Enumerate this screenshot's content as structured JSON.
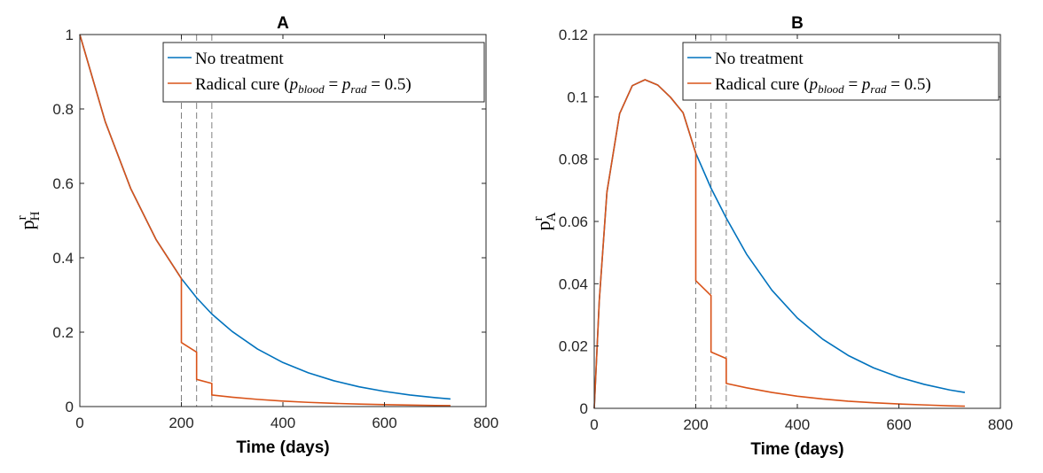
{
  "chart_data": [
    {
      "type": "line",
      "title": "A",
      "xlabel": "Time (days)",
      "ylabel": "p",
      "ylabel_sup": "r",
      "ylabel_sub": "H",
      "xlim": [
        0,
        800
      ],
      "ylim": [
        0,
        1
      ],
      "xticks": [
        "0",
        "200",
        "400",
        "600",
        "800"
      ],
      "yticks": [
        "0",
        "0.2",
        "0.4",
        "0.6",
        "0.8",
        "1"
      ],
      "vlines": [
        200,
        230,
        260
      ],
      "legend": {
        "position": "top-right",
        "entries": [
          "No treatment",
          "Radical cure (p_blood = p_rad = 0.5)"
        ]
      },
      "series": [
        {
          "name": "No treatment",
          "color": "#0072BD",
          "points": [
            [
              0,
              1
            ],
            [
              50,
              0.7659
            ],
            [
              100,
              0.5867
            ],
            [
              150,
              0.4493
            ],
            [
              200,
              0.3442
            ],
            [
              230,
              0.2926
            ],
            [
              260,
              0.2488
            ],
            [
              300,
              0.2019
            ],
            [
              350,
              0.1546
            ],
            [
              400,
              0.1184
            ],
            [
              450,
              0.0907
            ],
            [
              500,
              0.0695
            ],
            [
              550,
              0.0532
            ],
            [
              600,
              0.0408
            ],
            [
              650,
              0.0312
            ],
            [
              700,
              0.0239
            ],
            [
              730,
              0.0203
            ]
          ]
        },
        {
          "name": "Radical cure (p_blood = p_rad = 0.5)",
          "color": "#D95319",
          "points": [
            [
              0,
              1
            ],
            [
              50,
              0.7659
            ],
            [
              100,
              0.5867
            ],
            [
              150,
              0.4493
            ],
            [
              200,
              0.3442
            ],
            [
              200,
              0.1721
            ],
            [
              230,
              0.1463
            ],
            [
              230,
              0.0731
            ],
            [
              260,
              0.0622
            ],
            [
              260,
              0.0311
            ],
            [
              300,
              0.0252
            ],
            [
              350,
              0.0193
            ],
            [
              400,
              0.0148
            ],
            [
              450,
              0.0113
            ],
            [
              500,
              0.0087
            ],
            [
              550,
              0.0067
            ],
            [
              600,
              0.0051
            ],
            [
              650,
              0.0039
            ],
            [
              700,
              0.003
            ],
            [
              730,
              0.0025
            ]
          ]
        }
      ]
    },
    {
      "type": "line",
      "title": "B",
      "xlabel": "Time (days)",
      "ylabel": "p",
      "ylabel_sup": "r",
      "ylabel_sub": "A",
      "xlim": [
        0,
        800
      ],
      "ylim": [
        0,
        0.12
      ],
      "xticks": [
        "0",
        "200",
        "400",
        "600",
        "800"
      ],
      "yticks": [
        "0",
        "0.02",
        "0.04",
        "0.06",
        "0.08",
        "0.1",
        "0.12"
      ],
      "vlines": [
        200,
        230,
        260
      ],
      "legend": {
        "position": "top-right",
        "entries": [
          "No treatment",
          "Radical cure (p_blood = p_rad = 0.5)"
        ]
      },
      "series": [
        {
          "name": "No treatment",
          "color": "#0072BD",
          "points": [
            [
              0,
              0
            ],
            [
              10,
              0.0347
            ],
            [
              25,
              0.0694
            ],
            [
              50,
              0.0946
            ],
            [
              75,
              0.1036
            ],
            [
              100,
              0.1055
            ],
            [
              125,
              0.1038
            ],
            [
              150,
              0.0999
            ],
            [
              175,
              0.0949
            ],
            [
              200,
              0.0819
            ],
            [
              230,
              0.0707
            ],
            [
              260,
              0.0611
            ],
            [
              300,
              0.0495
            ],
            [
              350,
              0.0379
            ],
            [
              400,
              0.029
            ],
            [
              450,
              0.0222
            ],
            [
              500,
              0.017
            ],
            [
              550,
              0.013
            ],
            [
              600,
              0.01
            ],
            [
              650,
              0.0077
            ],
            [
              700,
              0.0059
            ],
            [
              730,
              0.0051
            ]
          ]
        },
        {
          "name": "Radical cure (p_blood = p_rad = 0.5)",
          "color": "#D95319",
          "points": [
            [
              0,
              0
            ],
            [
              10,
              0.0347
            ],
            [
              25,
              0.0694
            ],
            [
              50,
              0.0946
            ],
            [
              75,
              0.1036
            ],
            [
              100,
              0.1055
            ],
            [
              125,
              0.1038
            ],
            [
              150,
              0.0999
            ],
            [
              175,
              0.0949
            ],
            [
              200,
              0.0819
            ],
            [
              200,
              0.041
            ],
            [
              230,
              0.0362
            ],
            [
              230,
              0.0181
            ],
            [
              260,
              0.016
            ],
            [
              260,
              0.008
            ],
            [
              300,
              0.0066
            ],
            [
              350,
              0.0051
            ],
            [
              400,
              0.0039
            ],
            [
              450,
              0.003
            ],
            [
              500,
              0.0023
            ],
            [
              550,
              0.0018
            ],
            [
              600,
              0.0014
            ],
            [
              650,
              0.0011
            ],
            [
              700,
              0.0008
            ],
            [
              730,
              0.0007
            ]
          ]
        }
      ]
    }
  ]
}
